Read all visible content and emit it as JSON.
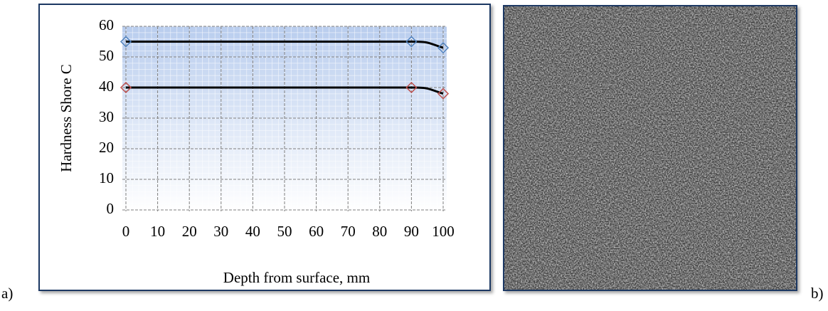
{
  "chart_data": {
    "type": "line",
    "x_label": "Depth from surface, mm",
    "y_label": "Hardness Shore C",
    "x": [
      0,
      90,
      100
    ],
    "series": [
      {
        "color": "#4f81bd",
        "values": [
          55,
          55,
          53
        ]
      },
      {
        "color": "#c0504d",
        "values": [
          40,
          40,
          38
        ]
      }
    ],
    "line_color": "#000000",
    "xlim": [
      0,
      100
    ],
    "xticks": [
      0,
      10,
      20,
      30,
      40,
      50,
      60,
      70,
      80,
      90,
      100
    ],
    "ylim": [
      0,
      60
    ],
    "yticks": [
      0,
      10,
      20,
      30,
      40,
      50,
      60
    ],
    "grid": true
  },
  "panel_labels": [
    "a)",
    "b)"
  ]
}
